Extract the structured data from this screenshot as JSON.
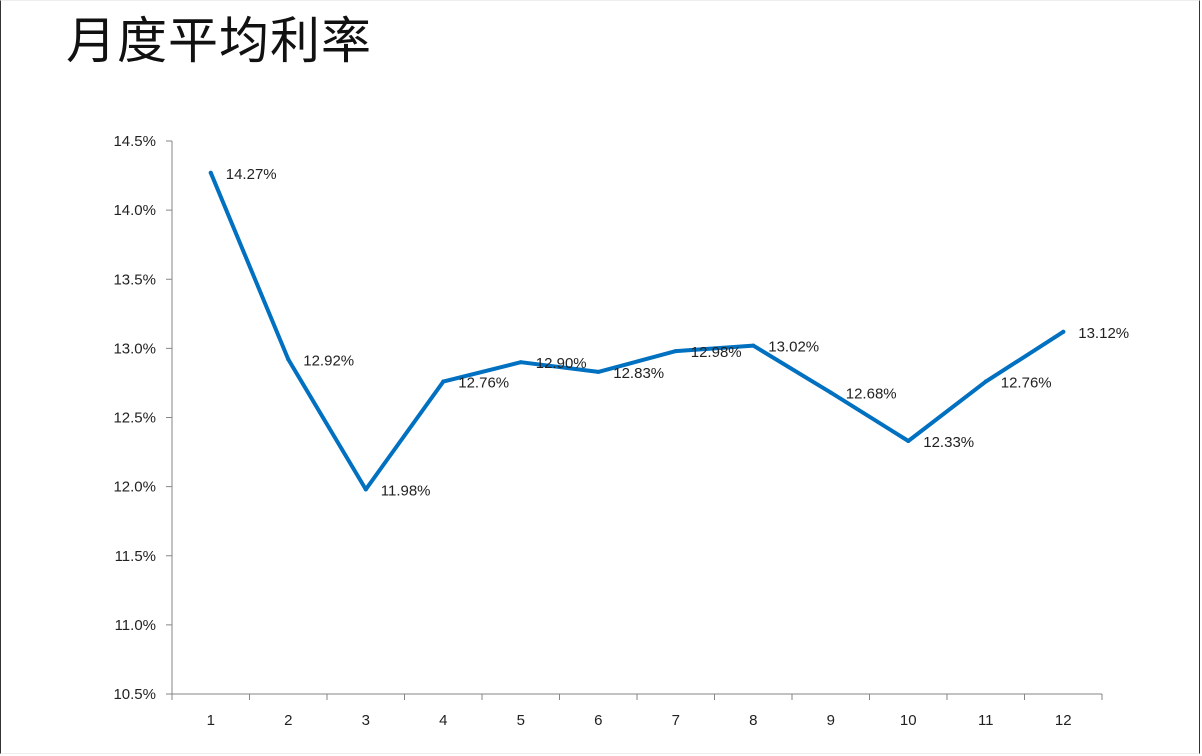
{
  "title": "月度平均利率",
  "chart_data": {
    "type": "line",
    "title": "月度平均利率",
    "xlabel": "",
    "ylabel": "",
    "categories": [
      "1",
      "2",
      "3",
      "4",
      "5",
      "6",
      "7",
      "8",
      "9",
      "10",
      "11",
      "12"
    ],
    "series": [
      {
        "values": [
          14.27,
          12.92,
          11.98,
          12.76,
          12.9,
          12.83,
          12.98,
          13.02,
          12.68,
          12.33,
          12.76,
          13.12
        ],
        "labels": [
          "14.27%",
          "12.92%",
          "11.98%",
          "12.76%",
          "12.90%",
          "12.83%",
          "12.98%",
          "13.02%",
          "12.68%",
          "12.33%",
          "12.76%",
          "13.12%"
        ],
        "color": "#0070C0"
      }
    ],
    "ylim": [
      10.5,
      14.5
    ],
    "yticks": [
      "10.5%",
      "11.0%",
      "11.5%",
      "12.0%",
      "12.5%",
      "13.0%",
      "13.5%",
      "14.0%",
      "14.5%"
    ],
    "ytick_values": [
      10.5,
      11.0,
      11.5,
      12.0,
      12.5,
      13.0,
      13.5,
      14.0,
      14.5
    ],
    "grid": false,
    "legend": "none",
    "axis_color": "#868686"
  }
}
